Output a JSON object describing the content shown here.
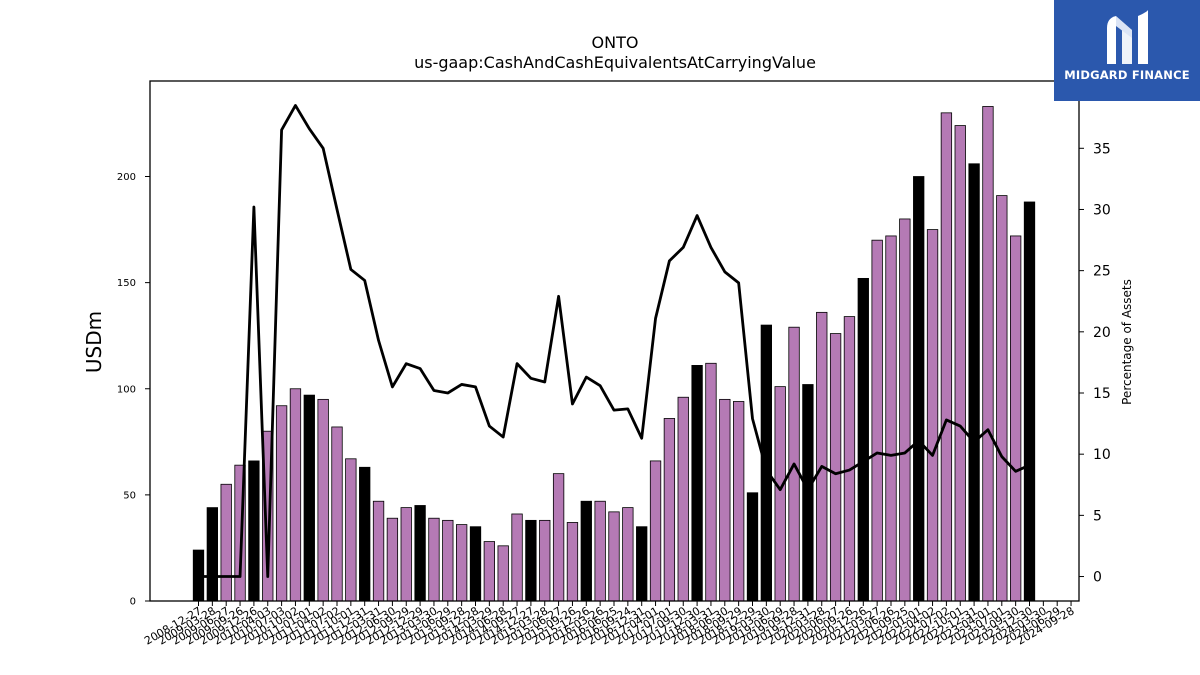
{
  "brand": {
    "name": "MIDGARD FINANCE",
    "logo_icon": "midgard-m-icon",
    "colors": {
      "background": "#2b58ad",
      "text": "#ffffff"
    }
  },
  "chart_data": {
    "type": "bar",
    "title": "ONTO",
    "subtitle": "us-gaap:CashAndCashEquivalentsAtCarryingValue",
    "ylabel": "USDm",
    "y2label": "Percentage of Assets",
    "ylim": [
      0,
      245
    ],
    "y2lim": [
      -2,
      40.5
    ],
    "yticks": [
      0,
      50,
      100,
      150,
      200
    ],
    "y2ticks": [
      0,
      5,
      10,
      15,
      20,
      25,
      30,
      35
    ],
    "colors": {
      "annual_bar": "#000000",
      "quarterly_bar": "#b57ab5",
      "line": "#000000"
    },
    "categories": [
      "2008-12-27",
      "2009-03-28",
      "2009-06-27",
      "2009-09-26",
      "2009-12-26",
      "2010-04-03",
      "2010-07-03",
      "2010-10-02",
      "2011-01-01",
      "2011-04-02",
      "2011-07-02",
      "2011-10-01",
      "2011-12-31",
      "2012-03-31",
      "2012-06-30",
      "2012-09-29",
      "2012-12-29",
      "2013-03-30",
      "2013-06-29",
      "2013-09-28",
      "2013-12-28",
      "2014-03-29",
      "2014-06-28",
      "2014-09-27",
      "2014-12-27",
      "2015-03-28",
      "2015-06-27",
      "2015-09-26",
      "2015-12-26",
      "2016-03-26",
      "2016-06-25",
      "2016-09-24",
      "2016-12-31",
      "2017-04-01",
      "2017-07-01",
      "2017-09-30",
      "2017-12-30",
      "2018-03-31",
      "2018-06-30",
      "2018-09-29",
      "2018-12-29",
      "2019-03-30",
      "2019-06-29",
      "2019-09-28",
      "2019-12-31",
      "2020-03-28",
      "2020-06-27",
      "2020-09-26",
      "2020-12-26",
      "2021-03-27",
      "2021-06-26",
      "2021-09-25",
      "2022-01-01",
      "2022-04-02",
      "2022-07-02",
      "2022-10-01",
      "2022-12-31",
      "2023-04-01",
      "2023-07-01",
      "2023-09-30",
      "2023-12-30",
      "2024-03-30",
      "2024-06-29",
      "2024-09-28"
    ],
    "x_tick_labels": [
      "2008-12-27",
      "2009-03-28",
      "2009-06-27",
      "2009-09-26",
      "2009-12-26",
      "2010-04-03",
      "2010-07-03",
      "2010-10-02",
      "2011-01-01",
      "2011-04-02",
      "2011-07-02",
      "2011-10-01",
      "2011-12-31",
      "2012-03-31",
      "2012-06-30",
      "2012-09-29",
      "2012-12-29",
      "2013-03-30",
      "2013-06-29",
      "2013-09-28",
      "2013-12-28",
      "2014-03-29",
      "2014-06-28",
      "2014-09-27",
      "2014-12-27",
      "2015-03-28",
      "2015-06-27",
      "2015-09-26",
      "2015-12-26",
      "2016-03-26",
      "2016-06-25",
      "2016-09-24",
      "2016-12-31",
      "2017-04-01",
      "2017-07-01",
      "2017-09-30",
      "2017-12-30",
      "2018-03-31",
      "2018-06-30",
      "2018-09-29",
      "2018-12-29",
      "2019-03-30",
      "2019-06-29",
      "2019-09-28",
      "2019-12-31",
      "2020-03-28",
      "2020-06-27",
      "2020-09-26",
      "2020-12-26",
      "2021-03-27",
      "2021-06-26",
      "2021-09-25",
      "2022-01-01",
      "2022-04-02",
      "2022-07-02",
      "2022-10-01",
      "2022-12-31",
      "2023-04-01",
      "2023-07-01",
      "2023-09-30",
      "2023-12-30",
      "2024-03-30",
      "2024-06-29",
      "2024-09-28"
    ],
    "annual_flags": [
      1,
      1,
      0,
      0,
      1,
      0,
      0,
      0,
      1,
      0,
      0,
      0,
      1,
      0,
      0,
      0,
      1,
      0,
      0,
      0,
      1,
      0,
      0,
      0,
      1,
      0,
      0,
      0,
      1,
      0,
      0,
      0,
      1,
      0,
      0,
      0,
      1,
      0,
      0,
      0,
      1,
      1,
      0,
      0,
      1,
      0,
      0,
      0,
      1,
      0,
      0,
      0,
      1,
      0,
      0,
      0,
      1,
      0,
      0,
      0,
      1,
      0,
      0,
      0
    ],
    "series": [
      {
        "name": "",
        "axis": "left",
        "type": "bar",
        "values": [
          24,
          44,
          55,
          64,
          66,
          80,
          92,
          100,
          97,
          95,
          82,
          67,
          63,
          47,
          39,
          44,
          45,
          39,
          38,
          36,
          35,
          28,
          26,
          41,
          38,
          38,
          60,
          37,
          47,
          47,
          42,
          44,
          35,
          66,
          86,
          96,
          111,
          112,
          95,
          94,
          51,
          130,
          101,
          129,
          102,
          136,
          126,
          134,
          152,
          170,
          172,
          180,
          200,
          175,
          230,
          224,
          206,
          233,
          191,
          172,
          188,
          null,
          null,
          null
        ]
      },
      {
        "name": "",
        "axis": "right",
        "type": "line",
        "values": [
          0,
          0,
          0,
          0,
          30.2,
          0,
          36.5,
          38.5,
          36.6,
          35,
          30,
          25.1,
          24.2,
          19.3,
          15.5,
          17.4,
          17,
          15.2,
          15,
          15.7,
          15.5,
          12.3,
          11.4,
          17.4,
          16.2,
          15.9,
          22.9,
          14.1,
          16.3,
          15.6,
          13.6,
          13.7,
          11.3,
          21.1,
          25.8,
          26.9,
          29.5,
          26.9,
          24.9,
          24.0,
          12.9,
          8.7,
          7.1,
          9.2,
          7.1,
          9.0,
          8.4,
          8.7,
          9.4,
          10.1,
          9.9,
          10.1,
          11.1,
          9.9,
          12.8,
          12.3,
          11.0,
          12.0,
          9.8,
          8.6,
          9.1,
          null,
          null,
          null
        ]
      }
    ]
  }
}
